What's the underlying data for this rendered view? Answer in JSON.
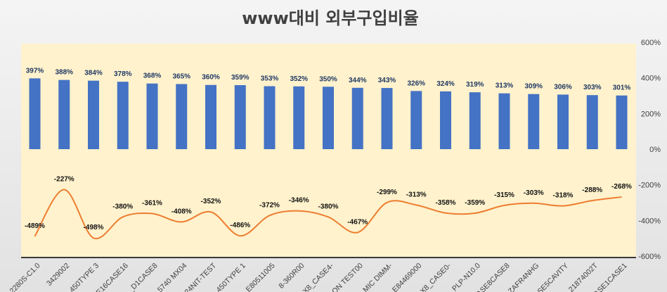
{
  "chart_data": {
    "type": "bar+line",
    "title": "www대비 외부구입비율",
    "categories": [
      "2280S-C1.0",
      "3429002",
      "450TYPE 3",
      "E16CASE16",
      "_D1CASE8",
      "5740 MX04",
      "24NIT-TEST",
      "450TYPE 1",
      "E80511005",
      "8-360R00",
      "X8_CASE4-",
      "ON TEST00",
      "MIC DIMM-",
      "E84469000",
      "X8_CASE0-",
      "PLP-N10.0",
      "ASE8CASE8",
      "ZAFR4NHG",
      "SE5CAVITY",
      "21874002T",
      "ASE1CASE1"
    ],
    "series": [
      {
        "name": "bar",
        "type": "bar",
        "color": "#4472C4",
        "values": [
          397,
          388,
          384,
          378,
          368,
          365,
          360,
          359,
          353,
          352,
          350,
          344,
          343,
          326,
          324,
          319,
          313,
          309,
          306,
          303,
          301
        ]
      },
      {
        "name": "line",
        "type": "line",
        "color": "#ED7D31",
        "values": [
          -489,
          -227,
          -498,
          -380,
          -361,
          -408,
          -352,
          -486,
          -372,
          -346,
          -380,
          -467,
          -299,
          -313,
          -358,
          -359,
          -315,
          -303,
          -318,
          -288,
          -268
        ]
      }
    ],
    "y_axis": {
      "position": "right",
      "range": [
        -600,
        600
      ],
      "ticks": [
        "600%",
        "400%",
        "200%",
        "0%",
        "-200%",
        "-400%",
        "-600%"
      ],
      "tick_values": [
        600,
        400,
        200,
        0,
        -200,
        -400,
        -600
      ]
    },
    "plot_background": "#FFF2CC",
    "grid": false
  }
}
